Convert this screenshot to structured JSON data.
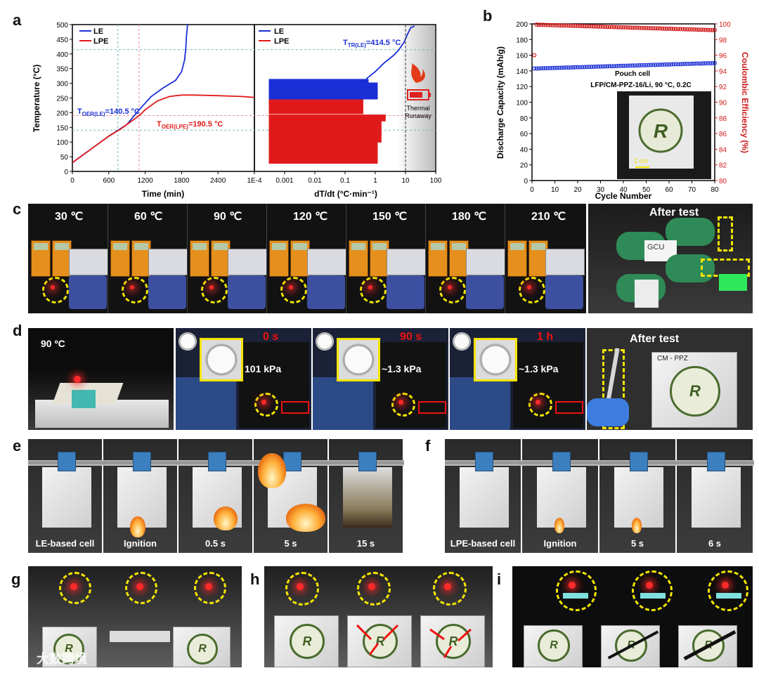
{
  "panels": {
    "a": "a",
    "b": "b",
    "c": "c",
    "d": "d",
    "e": "e",
    "f": "f",
    "g": "g",
    "h": "h",
    "i": "i"
  },
  "chart_data": [
    {
      "type": "line",
      "id": "a-left",
      "title": "",
      "xlabel": "Time (min)",
      "ylabel": "Temperature (°C)",
      "xlim": [
        0,
        3000
      ],
      "ylim": [
        0,
        500
      ],
      "xticks": [
        0,
        600,
        1200,
        1800,
        2400
      ],
      "yticks": [
        0,
        50,
        100,
        150,
        200,
        250,
        300,
        350,
        400,
        450,
        500
      ],
      "legend": [
        "LE",
        "LPE"
      ],
      "series": [
        {
          "name": "LE",
          "color": "#1a2fd6",
          "x": [
            0,
            300,
            600,
            750,
            900,
            1000,
            1100,
            1300,
            1500,
            1700,
            1800,
            1850,
            1870,
            1880,
            1890,
            1895,
            1900
          ],
          "y": [
            30,
            75,
            120,
            140,
            160,
            185,
            210,
            255,
            285,
            310,
            340,
            380,
            420,
            460,
            480,
            495,
            500
          ]
        },
        {
          "name": "LPE",
          "color": "#e01a1a",
          "x": [
            0,
            300,
            600,
            800,
            1000,
            1100,
            1200,
            1400,
            1600,
            1800,
            2000,
            2400,
            2800,
            3000
          ],
          "y": [
            30,
            75,
            120,
            145,
            175,
            190,
            210,
            240,
            255,
            260,
            260,
            258,
            255,
            252
          ]
        }
      ],
      "annotations": {
        "oer_le": {
          "main": "T",
          "sub": "OER(LE)",
          "rest": "=140.5 °C"
        },
        "oer_lpe": {
          "main": "T",
          "sub": "OER(LPE)",
          "rest": "=190.5 °C"
        }
      }
    },
    {
      "type": "line",
      "id": "a-right",
      "xlabel": "dT/dt (°C·min⁻¹)",
      "xscale": "log",
      "xlim": [
        0.0001,
        100
      ],
      "ylim": [
        0,
        500
      ],
      "xticks": [
        "1E-4",
        "0.001",
        "0.01",
        "0.1",
        "1",
        "10",
        "100"
      ],
      "legend": [
        "LE",
        "LPE"
      ],
      "annotations": {
        "tr_le": {
          "main": "T",
          "sub": "TR(LE)",
          "rest": "=414.5 °C"
        }
      },
      "side_label": [
        "Thermal",
        "Runaway"
      ]
    },
    {
      "type": "scatter",
      "id": "b",
      "xlabel": "Cycle Number",
      "ylabel": "Discharge Capacity (mAh/g)",
      "y2label": "Coulombic Efficiency (%)",
      "xlim": [
        0,
        80
      ],
      "ylim": [
        0,
        200
      ],
      "y2lim": [
        80,
        100
      ],
      "xticks": [
        0,
        10,
        20,
        30,
        40,
        50,
        60,
        70,
        80
      ],
      "yticks": [
        0,
        20,
        40,
        60,
        80,
        100,
        120,
        140,
        160,
        180,
        200
      ],
      "y2ticks": [
        80,
        82,
        84,
        86,
        88,
        90,
        92,
        94,
        96,
        98,
        100
      ],
      "series": [
        {
          "name": "Discharge Capacity",
          "color": "#1a2fd6",
          "axis": "left",
          "values_start": 143,
          "values_end": 150
        },
        {
          "name": "Coulombic Efficiency",
          "color": "#d11a1a",
          "axis": "right",
          "first": 96,
          "values_start": 99.9,
          "values_end": 99.2
        }
      ],
      "notes": [
        "Pouch cell",
        "LFP/CM-PPZ-16/Li, 90 °C, 0.2C"
      ],
      "scale_bar": "2 cm"
    }
  ],
  "c": {
    "temps": [
      "30 ℃",
      "60 ℃",
      "90 ℃",
      "120 ℃",
      "150 ℃",
      "180 ℃",
      "210 ℃"
    ],
    "after": "After test",
    "paper_text": "GCU"
  },
  "d": {
    "temp": "90 ºC",
    "times": [
      "0 s",
      "90 s",
      "1 h"
    ],
    "pressures": [
      "101 kPa",
      "~1.3 kPa",
      "~1.3 kPa"
    ],
    "after": "After test",
    "pouch_text": "CM - PPZ"
  },
  "e": {
    "captions": [
      "LE-based cell",
      "Ignition",
      "0.5 s",
      "5 s",
      "15 s"
    ]
  },
  "f": {
    "captions": [
      "LPE-based cell",
      "Ignition",
      "5 s",
      "6 s"
    ]
  },
  "watermark": "大数跨境",
  "logo_letter": "R"
}
